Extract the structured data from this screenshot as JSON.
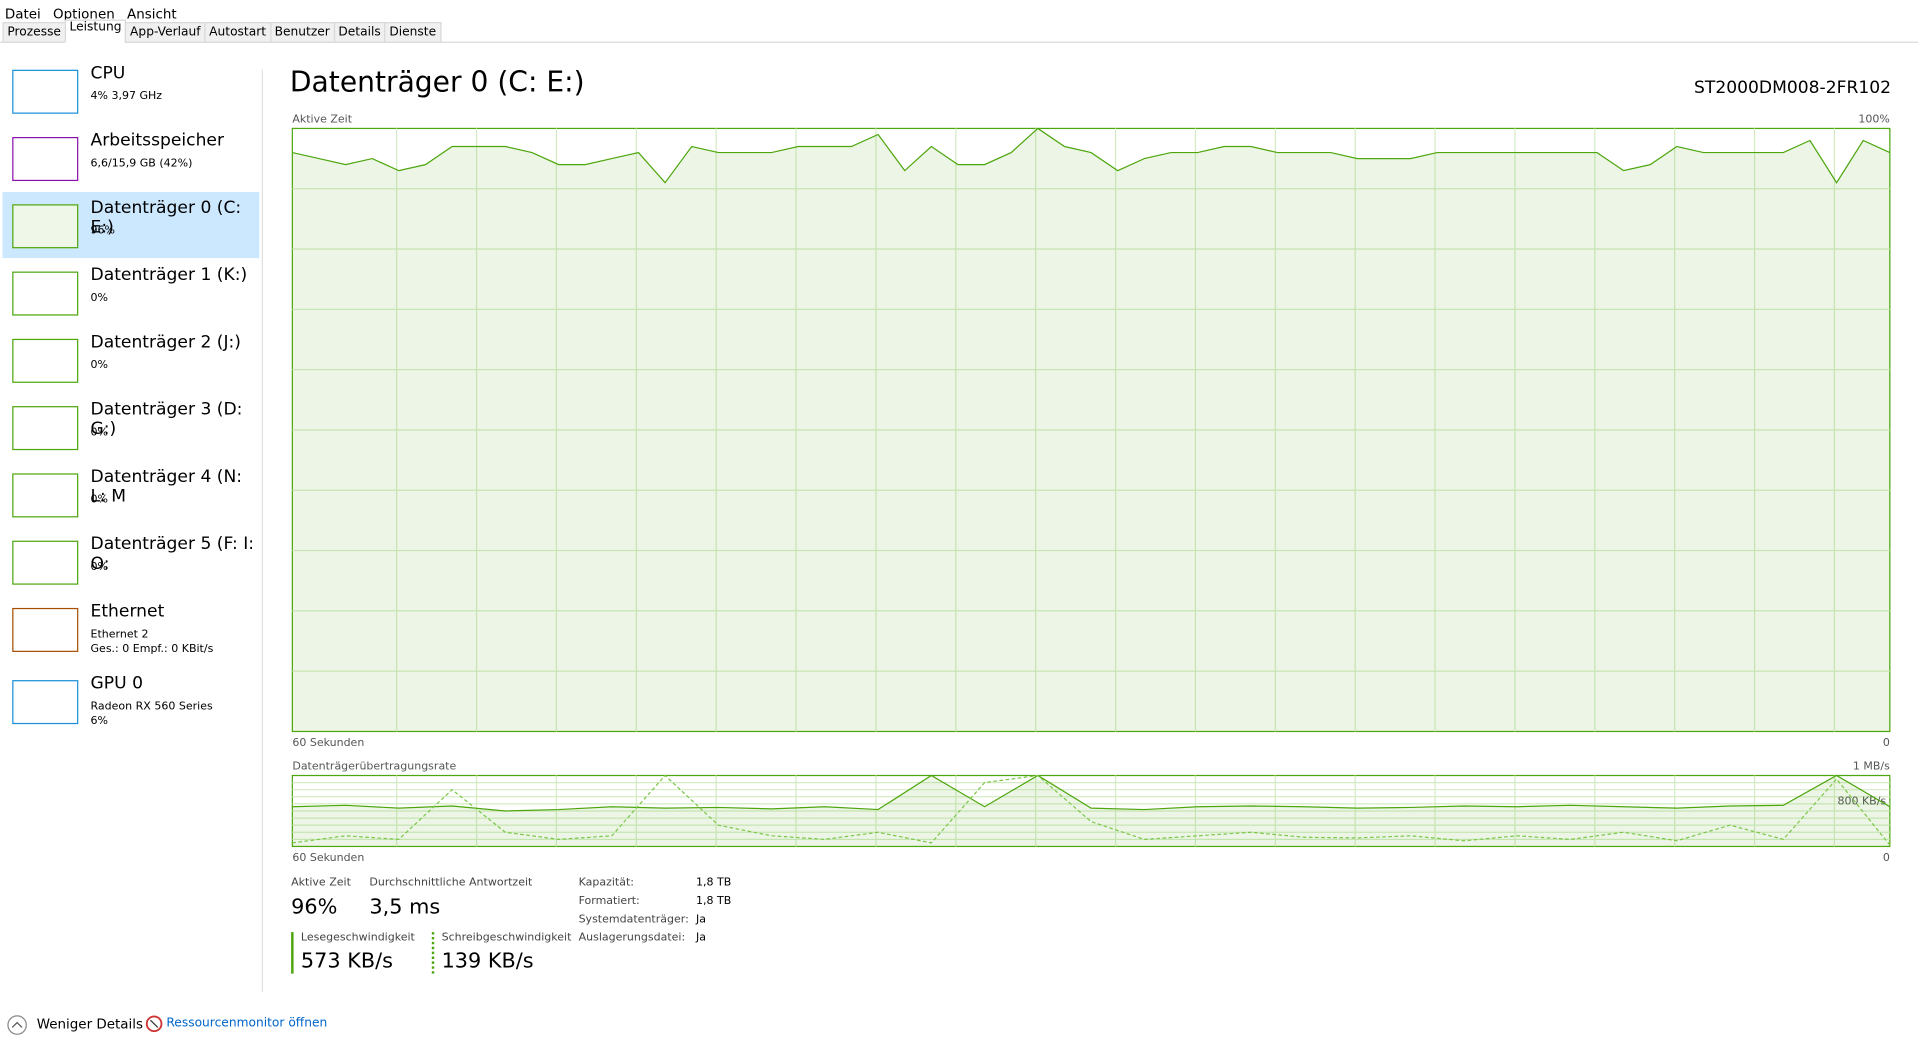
{
  "menu": [
    "Datei",
    "Optionen",
    "Ansicht"
  ],
  "tabs": [
    "Prozesse",
    "Leistung",
    "App-Verlauf",
    "Autostart",
    "Benutzer",
    "Details",
    "Dienste"
  ],
  "sidebar": [
    {
      "title": "CPU",
      "lines": [
        "4%  3,97 GHz"
      ]
    },
    {
      "title": "Arbeitsspeicher",
      "lines": [
        "6,6/15,9 GB (42%)"
      ]
    },
    {
      "title": "Datenträger 0 (C: E:)",
      "lines": [
        "96%"
      ]
    },
    {
      "title": "Datenträger 1 (K:)",
      "lines": [
        "0%"
      ]
    },
    {
      "title": "Datenträger 2 (J:)",
      "lines": [
        "0%"
      ]
    },
    {
      "title": "Datenträger 3 (D: G:)",
      "lines": [
        "0%"
      ]
    },
    {
      "title": "Datenträger 4 (N: L: M",
      "lines": [
        "0%"
      ]
    },
    {
      "title": "Datenträger 5 (F: I: O:",
      "lines": [
        "0%"
      ]
    },
    {
      "title": "Ethernet",
      "lines": [
        "Ethernet 2",
        "Ges.: 0 Empf.: 0 KBit/s"
      ]
    },
    {
      "title": "GPU 0",
      "lines": [
        "Radeon RX 560 Series",
        "6%"
      ]
    }
  ],
  "panel": {
    "title": "Datenträger 0 (C: E:)",
    "model": "ST2000DM008-2FR102",
    "activity": {
      "label": "Aktive Zeit",
      "ylim": [
        0,
        100
      ],
      "yticks": [
        {
          "value": 100,
          "label": "100%"
        }
      ],
      "x_start": "60 Sekunden",
      "x_end": "0",
      "color": "#4da60c",
      "values": [
        96,
        95,
        94,
        95,
        93,
        94,
        97,
        97,
        97,
        96,
        94,
        94,
        95,
        96,
        91,
        97,
        96,
        96,
        96,
        97,
        97,
        97,
        99,
        93,
        97,
        94,
        94,
        96,
        100,
        97,
        96,
        93,
        95,
        96,
        96,
        97,
        97,
        96,
        96,
        96,
        95,
        95,
        95,
        96,
        96,
        96,
        96,
        96,
        96,
        96,
        93,
        94,
        97,
        96,
        96,
        96,
        96,
        98,
        91,
        98,
        96
      ]
    },
    "transfer": {
      "label": "Datenträgerübertragungsrate",
      "ylim": [
        0,
        1000
      ],
      "yticks": [
        {
          "value": 1000,
          "label": "1 MB/s"
        },
        {
          "value": 800,
          "label": "800 KB/s"
        }
      ],
      "x_start": "60 Sekunden",
      "x_end": "0",
      "series": [
        {
          "color": "#4da60c",
          "dash": false,
          "values": [
            560,
            580,
            540,
            570,
            500,
            520,
            560,
            540,
            550,
            530,
            560,
            520,
            1000,
            560,
            1000,
            540,
            520,
            560,
            570,
            560,
            540,
            550,
            570,
            560,
            580,
            560,
            540,
            570,
            580,
            1000,
            560
          ]
        },
        {
          "color": "#7cc74a",
          "dash": true,
          "values": [
            50,
            150,
            100,
            800,
            200,
            100,
            150,
            1000,
            300,
            150,
            100,
            200,
            50,
            900,
            1000,
            350,
            100,
            150,
            200,
            130,
            120,
            150,
            80,
            150,
            100,
            200,
            80,
            300,
            100,
            950,
            20
          ]
        }
      ]
    }
  },
  "stats": {
    "active_label": "Aktive Zeit",
    "active": "96%",
    "resp_label": "Durchschnittliche Antwortzeit",
    "resp": "3,5 ms",
    "read_label": "Lesegeschwindigkeit",
    "read": "573 KB/s",
    "write_label": "Schreibgeschwindigkeit",
    "write": "139 KB/s",
    "props": [
      [
        "Kapazität:",
        "1,8 TB"
      ],
      [
        "Formatiert:",
        "1,8 TB"
      ],
      [
        "Systemdatenträger:",
        "Ja"
      ],
      [
        "Auslagerungsdatei:",
        "Ja"
      ]
    ]
  },
  "footer": {
    "less": "Weniger Details",
    "monitor": "Ressourcenmonitor öffnen"
  }
}
